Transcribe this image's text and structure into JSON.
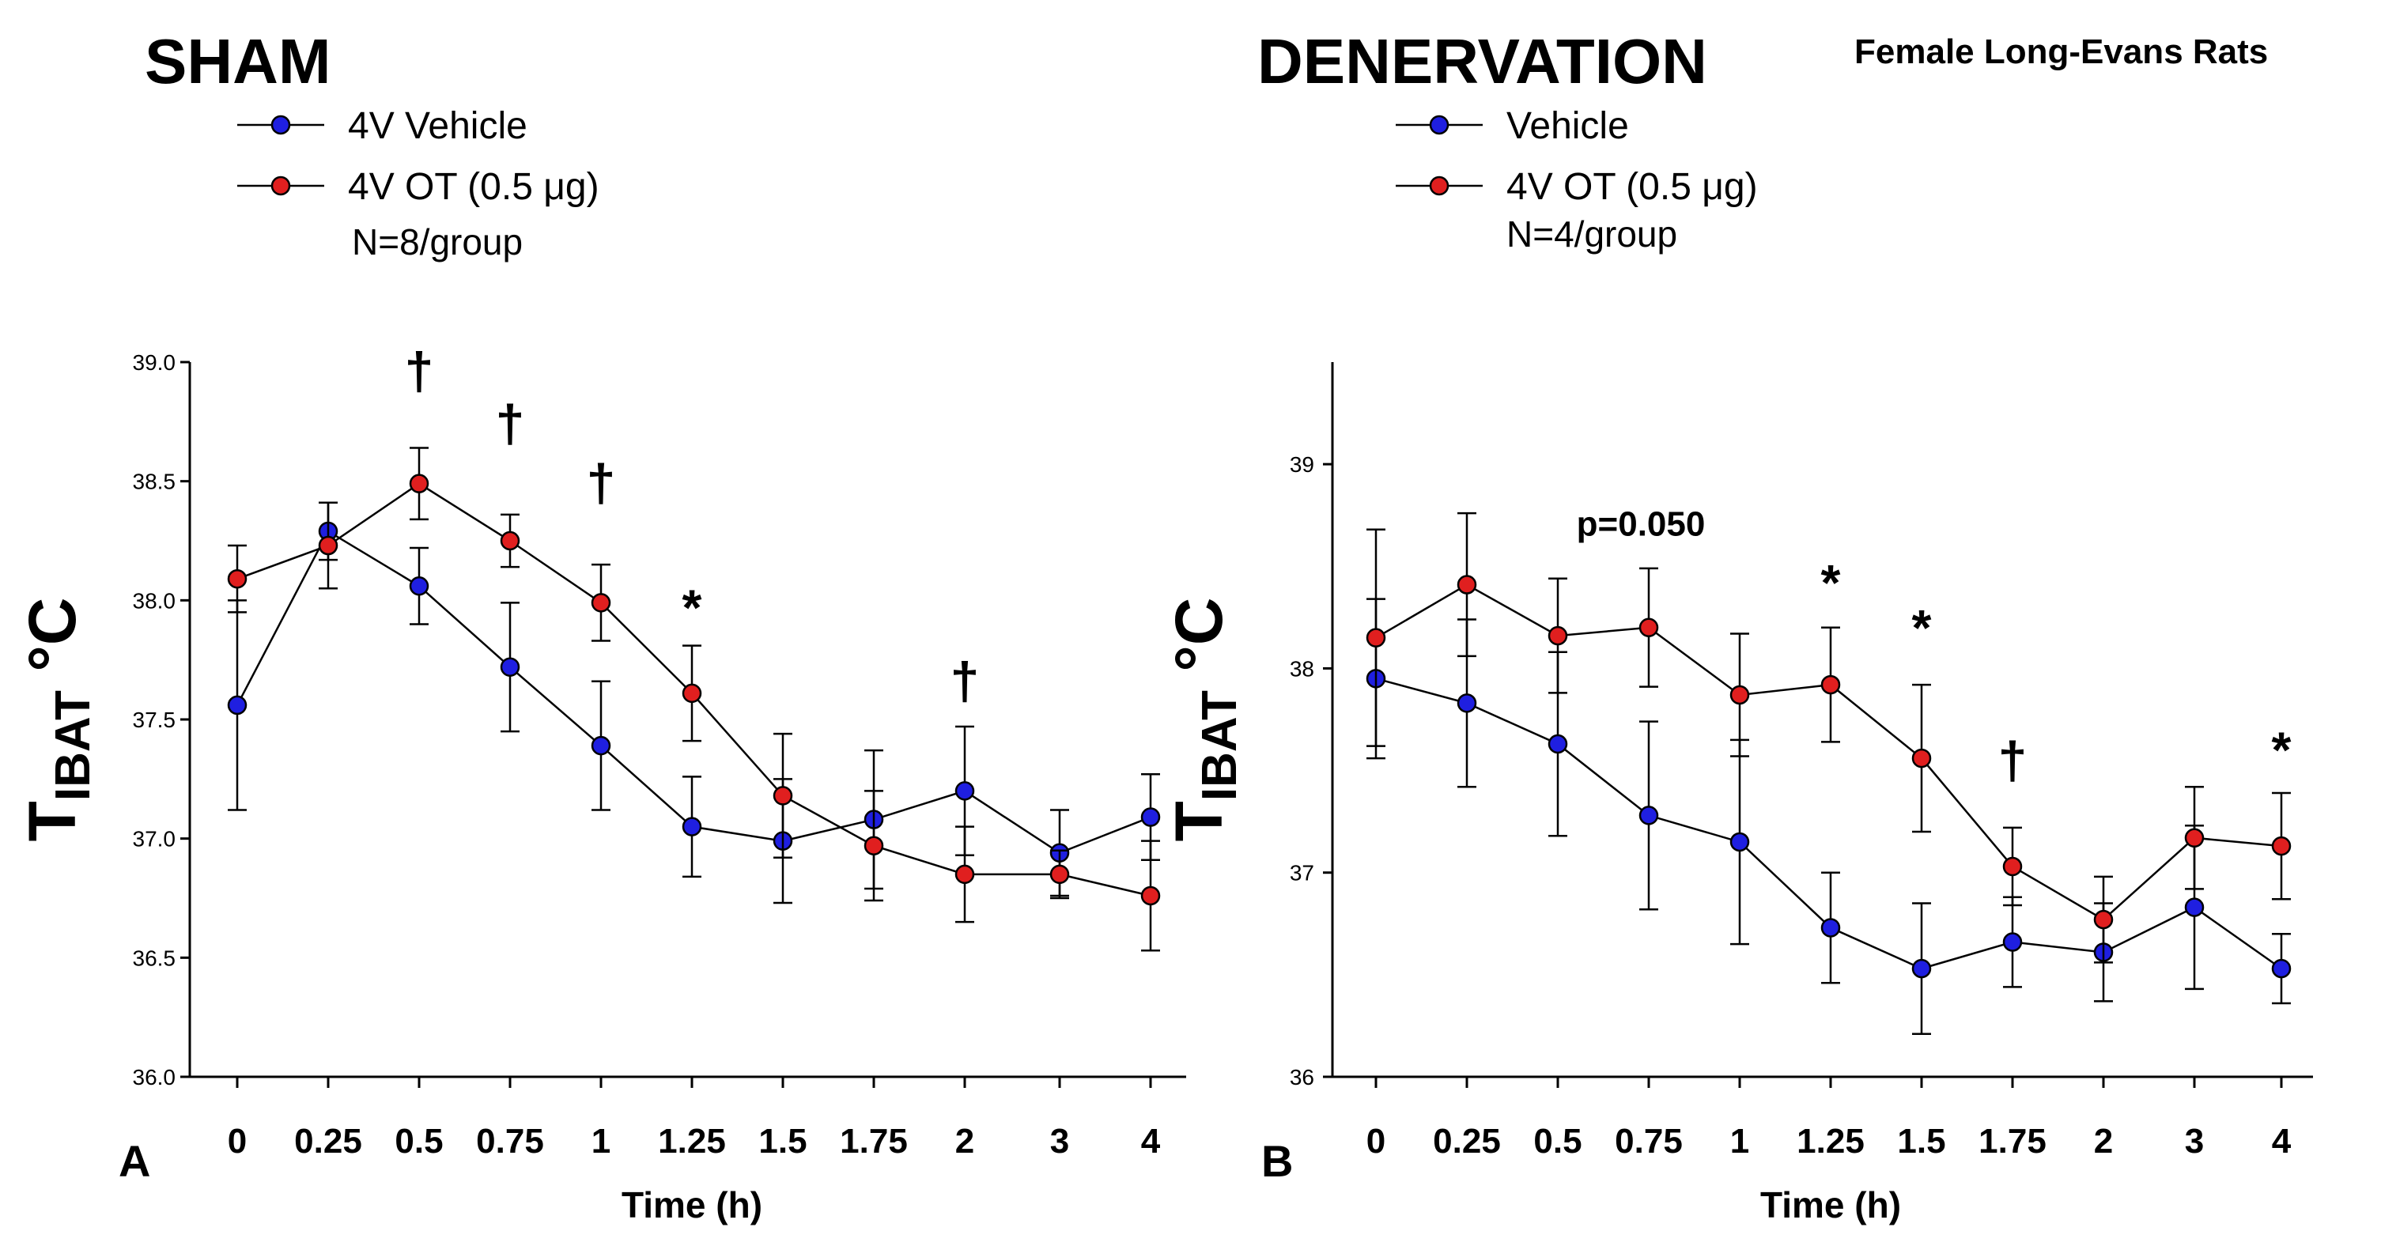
{
  "figure": {
    "species_label": "Female Long-Evans Rats",
    "xlabel": "Time (h)",
    "ylabel_main": "T",
    "ylabel_sub": "IBAT",
    "ylabel_unit": " °C",
    "colors": {
      "vehicle": "#1f1fe0",
      "ot": "#e01f1f",
      "line": "#000000"
    }
  },
  "chart_data": [
    {
      "panel": "A",
      "title": "SHAM",
      "type": "line",
      "n_label": "N=8/group",
      "xlabel": "Time (h)",
      "ylabel": "TIBAT °C",
      "categories": [
        "0",
        "0.25",
        "0.5",
        "0.75",
        "1",
        "1.25",
        "1.5",
        "1.75",
        "2",
        "3",
        "4"
      ],
      "ylim": [
        36.0,
        39.0
      ],
      "yticks": [
        "36.0",
        "36.5",
        "37.0",
        "37.5",
        "38.0",
        "38.5",
        "39.0"
      ],
      "series": [
        {
          "name": "4V Vehicle",
          "color": "#1f1fe0",
          "values": [
            37.56,
            38.29,
            38.06,
            37.72,
            37.39,
            37.05,
            36.99,
            37.08,
            37.2,
            36.94,
            37.09
          ],
          "errors": [
            0.44,
            0.12,
            0.16,
            0.27,
            0.27,
            0.21,
            0.26,
            0.29,
            0.27,
            0.18,
            0.18
          ]
        },
        {
          "name": "4V OT (0.5 μg)",
          "color": "#e01f1f",
          "values": [
            38.09,
            38.23,
            38.49,
            38.25,
            37.99,
            37.61,
            37.18,
            36.97,
            36.85,
            36.85,
            36.76
          ],
          "errors": [
            0.14,
            0.18,
            0.15,
            0.11,
            0.16,
            0.2,
            0.26,
            0.23,
            0.2,
            0.1,
            0.23
          ]
        }
      ],
      "annotations": [
        {
          "text": "†",
          "category": "0.5",
          "y": 38.92
        },
        {
          "text": "†",
          "category": "0.75",
          "y": 38.7
        },
        {
          "text": "†",
          "category": "1",
          "y": 38.45
        },
        {
          "text": "*",
          "category": "1.25",
          "y": 37.97
        },
        {
          "text": "†",
          "category": "2",
          "y": 37.62
        }
      ]
    },
    {
      "panel": "B",
      "title": "DENERVATION",
      "type": "line",
      "n_label": "N=4/group",
      "xlabel": "Time (h)",
      "ylabel": "TIBAT °C",
      "categories": [
        "0",
        "0.25",
        "0.5",
        "0.75",
        "1",
        "1.25",
        "1.5",
        "1.75",
        "2",
        "3",
        "4"
      ],
      "ylim": [
        36.0,
        39.5
      ],
      "yticks": [
        "36",
        "37",
        "38",
        "39"
      ],
      "series": [
        {
          "name": "Vehicle",
          "color": "#1f1fe0",
          "values": [
            37.95,
            37.83,
            37.63,
            37.28,
            37.15,
            36.73,
            36.53,
            36.66,
            36.61,
            36.83,
            36.53
          ],
          "errors": [
            0.39,
            0.41,
            0.45,
            0.46,
            0.5,
            0.27,
            0.32,
            0.22,
            0.24,
            0.4,
            0.17
          ]
        },
        {
          "name": "4V OT (0.5 μg)",
          "color": "#e01f1f",
          "values": [
            38.15,
            38.41,
            38.16,
            38.2,
            37.87,
            37.92,
            37.56,
            37.03,
            36.77,
            37.17,
            37.13
          ],
          "errors": [
            0.53,
            0.35,
            0.28,
            0.29,
            0.3,
            0.28,
            0.36,
            0.19,
            0.21,
            0.25,
            0.26
          ]
        }
      ],
      "annotations": [
        {
          "text": "p=0.050",
          "category": "0.75",
          "y": 38.65,
          "italic_prefix": "p"
        },
        {
          "text": "*",
          "category": "1.25",
          "y": 38.42
        },
        {
          "text": "*",
          "category": "1.5",
          "y": 38.2
        },
        {
          "text": "†",
          "category": "1.75",
          "y": 37.5
        },
        {
          "text": "*",
          "category": "4",
          "y": 37.6
        }
      ]
    }
  ]
}
